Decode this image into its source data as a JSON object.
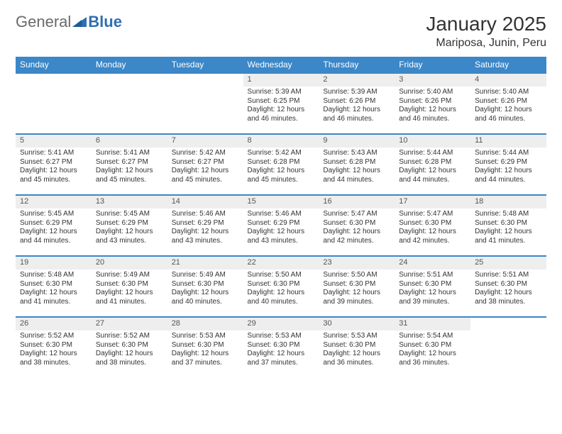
{
  "brand": {
    "word1": "General",
    "word2": "Blue"
  },
  "title": {
    "month": "January 2025",
    "location": "Mariposa, Junin, Peru"
  },
  "colors": {
    "header_bg": "#3b87c8",
    "header_text": "#ffffff",
    "daynum_bg": "#eeeeee",
    "rule": "#3b87c8",
    "text": "#333333",
    "logo_gray": "#6a6a6a",
    "logo_blue": "#2f6fb0"
  },
  "dayHeaders": [
    "Sunday",
    "Monday",
    "Tuesday",
    "Wednesday",
    "Thursday",
    "Friday",
    "Saturday"
  ],
  "weeks": [
    [
      null,
      null,
      null,
      {
        "n": "1",
        "sr": "5:39 AM",
        "ss": "6:25 PM",
        "dl": "12 hours and 46 minutes."
      },
      {
        "n": "2",
        "sr": "5:39 AM",
        "ss": "6:26 PM",
        "dl": "12 hours and 46 minutes."
      },
      {
        "n": "3",
        "sr": "5:40 AM",
        "ss": "6:26 PM",
        "dl": "12 hours and 46 minutes."
      },
      {
        "n": "4",
        "sr": "5:40 AM",
        "ss": "6:26 PM",
        "dl": "12 hours and 46 minutes."
      }
    ],
    [
      {
        "n": "5",
        "sr": "5:41 AM",
        "ss": "6:27 PM",
        "dl": "12 hours and 45 minutes."
      },
      {
        "n": "6",
        "sr": "5:41 AM",
        "ss": "6:27 PM",
        "dl": "12 hours and 45 minutes."
      },
      {
        "n": "7",
        "sr": "5:42 AM",
        "ss": "6:27 PM",
        "dl": "12 hours and 45 minutes."
      },
      {
        "n": "8",
        "sr": "5:42 AM",
        "ss": "6:28 PM",
        "dl": "12 hours and 45 minutes."
      },
      {
        "n": "9",
        "sr": "5:43 AM",
        "ss": "6:28 PM",
        "dl": "12 hours and 44 minutes."
      },
      {
        "n": "10",
        "sr": "5:44 AM",
        "ss": "6:28 PM",
        "dl": "12 hours and 44 minutes."
      },
      {
        "n": "11",
        "sr": "5:44 AM",
        "ss": "6:29 PM",
        "dl": "12 hours and 44 minutes."
      }
    ],
    [
      {
        "n": "12",
        "sr": "5:45 AM",
        "ss": "6:29 PM",
        "dl": "12 hours and 44 minutes."
      },
      {
        "n": "13",
        "sr": "5:45 AM",
        "ss": "6:29 PM",
        "dl": "12 hours and 43 minutes."
      },
      {
        "n": "14",
        "sr": "5:46 AM",
        "ss": "6:29 PM",
        "dl": "12 hours and 43 minutes."
      },
      {
        "n": "15",
        "sr": "5:46 AM",
        "ss": "6:29 PM",
        "dl": "12 hours and 43 minutes."
      },
      {
        "n": "16",
        "sr": "5:47 AM",
        "ss": "6:30 PM",
        "dl": "12 hours and 42 minutes."
      },
      {
        "n": "17",
        "sr": "5:47 AM",
        "ss": "6:30 PM",
        "dl": "12 hours and 42 minutes."
      },
      {
        "n": "18",
        "sr": "5:48 AM",
        "ss": "6:30 PM",
        "dl": "12 hours and 41 minutes."
      }
    ],
    [
      {
        "n": "19",
        "sr": "5:48 AM",
        "ss": "6:30 PM",
        "dl": "12 hours and 41 minutes."
      },
      {
        "n": "20",
        "sr": "5:49 AM",
        "ss": "6:30 PM",
        "dl": "12 hours and 41 minutes."
      },
      {
        "n": "21",
        "sr": "5:49 AM",
        "ss": "6:30 PM",
        "dl": "12 hours and 40 minutes."
      },
      {
        "n": "22",
        "sr": "5:50 AM",
        "ss": "6:30 PM",
        "dl": "12 hours and 40 minutes."
      },
      {
        "n": "23",
        "sr": "5:50 AM",
        "ss": "6:30 PM",
        "dl": "12 hours and 39 minutes."
      },
      {
        "n": "24",
        "sr": "5:51 AM",
        "ss": "6:30 PM",
        "dl": "12 hours and 39 minutes."
      },
      {
        "n": "25",
        "sr": "5:51 AM",
        "ss": "6:30 PM",
        "dl": "12 hours and 38 minutes."
      }
    ],
    [
      {
        "n": "26",
        "sr": "5:52 AM",
        "ss": "6:30 PM",
        "dl": "12 hours and 38 minutes."
      },
      {
        "n": "27",
        "sr": "5:52 AM",
        "ss": "6:30 PM",
        "dl": "12 hours and 38 minutes."
      },
      {
        "n": "28",
        "sr": "5:53 AM",
        "ss": "6:30 PM",
        "dl": "12 hours and 37 minutes."
      },
      {
        "n": "29",
        "sr": "5:53 AM",
        "ss": "6:30 PM",
        "dl": "12 hours and 37 minutes."
      },
      {
        "n": "30",
        "sr": "5:53 AM",
        "ss": "6:30 PM",
        "dl": "12 hours and 36 minutes."
      },
      {
        "n": "31",
        "sr": "5:54 AM",
        "ss": "6:30 PM",
        "dl": "12 hours and 36 minutes."
      },
      null
    ]
  ],
  "labels": {
    "sunrise": "Sunrise:",
    "sunset": "Sunset:",
    "daylight": "Daylight:"
  }
}
